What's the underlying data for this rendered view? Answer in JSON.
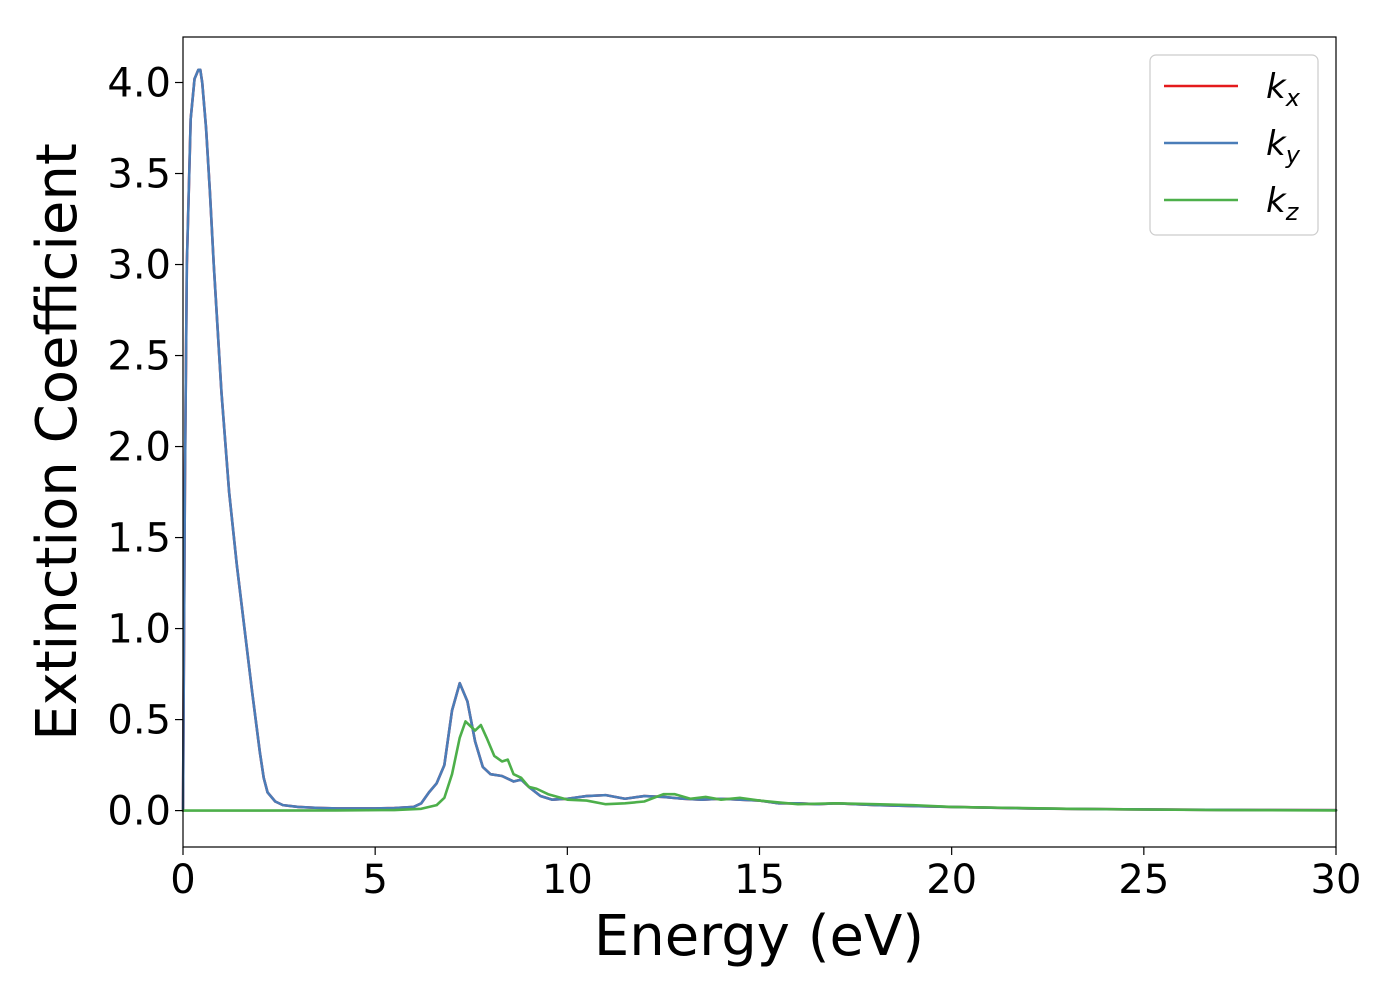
{
  "chart_data": {
    "type": "line",
    "title": "",
    "xlabel": "Energy (eV)",
    "ylabel": "Extinction Coefficient",
    "xlim": [
      0,
      30
    ],
    "ylim": [
      -0.2,
      4.25
    ],
    "xticks": [
      0,
      5,
      10,
      15,
      20,
      25,
      30
    ],
    "xtick_labels": [
      "0",
      "5",
      "10",
      "15",
      "20",
      "25",
      "30"
    ],
    "yticks": [
      0.0,
      0.5,
      1.0,
      1.5,
      2.0,
      2.5,
      3.0,
      3.5,
      4.0
    ],
    "ytick_labels": [
      "0.0",
      "0.5",
      "1.0",
      "1.5",
      "2.0",
      "2.5",
      "3.0",
      "3.5",
      "4.0"
    ],
    "grid": false,
    "legend_position": "top-right",
    "series": [
      {
        "name": "k_x",
        "label_main": "k",
        "label_sub": "x",
        "color": "#e41a1c",
        "x": [
          0,
          0.05,
          0.1,
          0.2,
          0.3,
          0.4,
          0.45,
          0.5,
          0.6,
          0.7,
          0.8,
          1.0,
          1.2,
          1.4,
          1.6,
          1.8,
          2.0,
          2.1,
          2.2,
          2.4,
          2.6,
          3.0,
          3.5,
          4.0,
          5.0,
          5.5,
          6.0,
          6.2,
          6.4,
          6.6,
          6.8,
          7.0,
          7.2,
          7.4,
          7.6,
          7.8,
          8.0,
          8.3,
          8.6,
          8.8,
          9.0,
          9.3,
          9.6,
          10.0,
          10.5,
          11.0,
          11.5,
          12.0,
          12.5,
          13.0,
          13.5,
          14.0,
          14.5,
          15.0,
          15.5,
          16.0,
          16.5,
          17.0,
          17.5,
          18.0,
          19.0,
          20.0,
          22.0,
          24.0,
          26.0,
          28.0,
          30.0
        ],
        "y": [
          0.0,
          1.8,
          3.0,
          3.8,
          4.02,
          4.07,
          4.07,
          4.0,
          3.75,
          3.4,
          3.0,
          2.3,
          1.75,
          1.35,
          1.0,
          0.65,
          0.32,
          0.18,
          0.1,
          0.05,
          0.03,
          0.02,
          0.015,
          0.012,
          0.012,
          0.014,
          0.02,
          0.04,
          0.1,
          0.15,
          0.25,
          0.55,
          0.7,
          0.6,
          0.38,
          0.24,
          0.2,
          0.19,
          0.16,
          0.17,
          0.13,
          0.08,
          0.06,
          0.065,
          0.08,
          0.085,
          0.065,
          0.08,
          0.075,
          0.065,
          0.06,
          0.065,
          0.06,
          0.055,
          0.04,
          0.04,
          0.035,
          0.04,
          0.035,
          0.03,
          0.025,
          0.02,
          0.012,
          0.008,
          0.005,
          0.003,
          0.002
        ]
      },
      {
        "name": "k_y",
        "label_main": "k",
        "label_sub": "y",
        "color": "#4a7db8",
        "x": [
          0,
          0.05,
          0.1,
          0.2,
          0.3,
          0.4,
          0.45,
          0.5,
          0.6,
          0.7,
          0.8,
          1.0,
          1.2,
          1.4,
          1.6,
          1.8,
          2.0,
          2.1,
          2.2,
          2.4,
          2.6,
          3.0,
          3.5,
          4.0,
          5.0,
          5.5,
          6.0,
          6.2,
          6.4,
          6.6,
          6.8,
          7.0,
          7.2,
          7.4,
          7.6,
          7.8,
          8.0,
          8.3,
          8.6,
          8.8,
          9.0,
          9.3,
          9.6,
          10.0,
          10.5,
          11.0,
          11.5,
          12.0,
          12.5,
          13.0,
          13.5,
          14.0,
          14.5,
          15.0,
          15.5,
          16.0,
          16.5,
          17.0,
          17.5,
          18.0,
          19.0,
          20.0,
          22.0,
          24.0,
          26.0,
          28.0,
          30.0
        ],
        "y": [
          0.0,
          1.8,
          3.0,
          3.8,
          4.02,
          4.07,
          4.07,
          4.0,
          3.75,
          3.4,
          3.0,
          2.3,
          1.75,
          1.35,
          1.0,
          0.65,
          0.32,
          0.18,
          0.1,
          0.05,
          0.03,
          0.02,
          0.015,
          0.012,
          0.012,
          0.014,
          0.02,
          0.04,
          0.1,
          0.15,
          0.25,
          0.55,
          0.7,
          0.6,
          0.38,
          0.24,
          0.2,
          0.19,
          0.16,
          0.17,
          0.13,
          0.08,
          0.06,
          0.065,
          0.08,
          0.085,
          0.065,
          0.08,
          0.075,
          0.065,
          0.06,
          0.065,
          0.06,
          0.055,
          0.04,
          0.04,
          0.035,
          0.04,
          0.035,
          0.03,
          0.025,
          0.02,
          0.012,
          0.008,
          0.005,
          0.003,
          0.002
        ]
      },
      {
        "name": "k_z",
        "label_main": "k",
        "label_sub": "z",
        "color": "#4daf4a",
        "x": [
          0,
          2.0,
          4.0,
          5.5,
          6.2,
          6.6,
          6.8,
          7.0,
          7.2,
          7.35,
          7.5,
          7.6,
          7.75,
          7.9,
          8.1,
          8.3,
          8.45,
          8.6,
          8.8,
          9.0,
          9.2,
          9.5,
          10.0,
          10.5,
          11.0,
          11.5,
          12.0,
          12.5,
          12.8,
          13.2,
          13.6,
          14.0,
          14.5,
          15.0,
          15.5,
          16.0,
          17.0,
          18.0,
          19.0,
          20.0,
          21.5,
          23.0,
          25.0,
          27.0,
          30.0
        ],
        "y": [
          0.0,
          0.0,
          0.001,
          0.003,
          0.01,
          0.03,
          0.07,
          0.2,
          0.4,
          0.49,
          0.46,
          0.44,
          0.47,
          0.4,
          0.3,
          0.27,
          0.28,
          0.2,
          0.18,
          0.13,
          0.12,
          0.09,
          0.06,
          0.055,
          0.035,
          0.04,
          0.05,
          0.09,
          0.09,
          0.065,
          0.075,
          0.06,
          0.07,
          0.055,
          0.045,
          0.035,
          0.04,
          0.035,
          0.03,
          0.02,
          0.015,
          0.01,
          0.006,
          0.003,
          0.001
        ]
      }
    ]
  }
}
